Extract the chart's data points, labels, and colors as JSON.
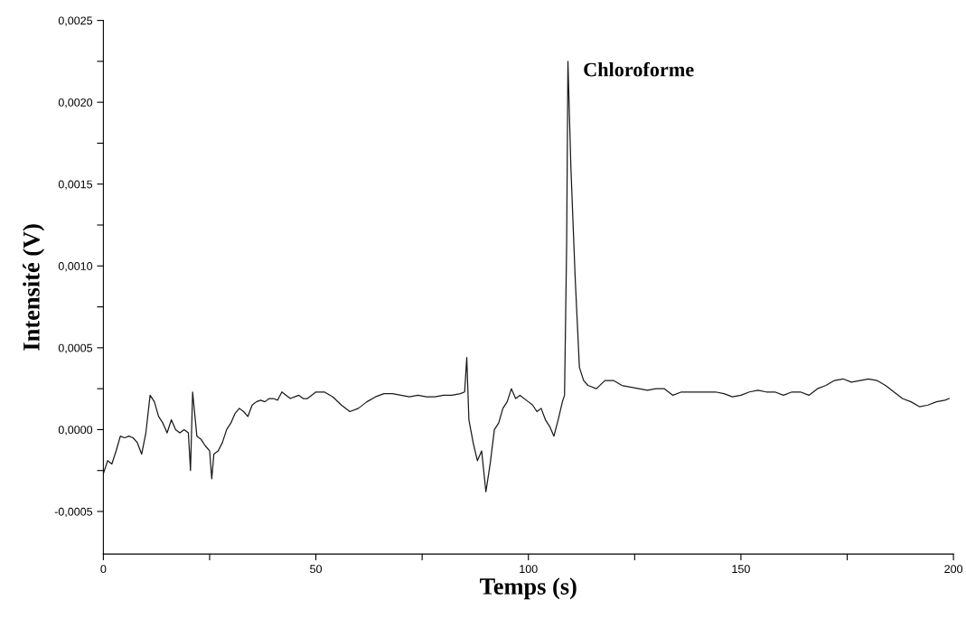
{
  "chart_data": {
    "type": "line",
    "xlabel": "Temps (s)",
    "ylabel": "Intensité (V)",
    "xlim": [
      0,
      200
    ],
    "ylim": [
      -0.00076,
      0.0025
    ],
    "xticks": [
      0,
      {
        "value": 25,
        "label": null
      },
      50,
      {
        "value": 75,
        "label": null
      },
      100,
      {
        "value": 125,
        "label": null
      },
      150,
      {
        "value": 175,
        "label": null
      },
      200
    ],
    "yticks": [
      {
        "value": -0.0005,
        "label": "-0,0005"
      },
      {
        "value": -0.00025,
        "label": null
      },
      {
        "value": 0,
        "label": "0,0000"
      },
      {
        "value": 0.00025,
        "label": null
      },
      {
        "value": 0.0005,
        "label": "0,0005"
      },
      {
        "value": 0.00075,
        "label": null
      },
      {
        "value": 0.001,
        "label": "0,0010"
      },
      {
        "value": 0.00125,
        "label": null
      },
      {
        "value": 0.0015,
        "label": "0,0015"
      },
      {
        "value": 0.00175,
        "label": null
      },
      {
        "value": 0.002,
        "label": "0,0020"
      },
      {
        "value": 0.00225,
        "label": null
      },
      {
        "value": 0.0025,
        "label": "0,0025"
      }
    ],
    "grid": false,
    "marker": "none",
    "line_style": "solid",
    "annotations": [
      "Chloroforme"
    ],
    "series": [
      {
        "color": "#1a1a1a",
        "x": [
          0,
          1,
          2,
          3,
          4,
          5,
          6,
          7,
          8,
          9,
          10,
          11,
          12,
          13,
          14,
          15,
          16,
          17,
          18,
          19,
          20,
          20.5,
          21,
          22,
          23,
          24,
          25,
          25.5,
          26,
          27,
          28,
          29,
          30,
          31,
          32,
          33,
          34,
          35,
          36,
          37,
          38,
          39,
          40,
          41,
          42,
          43,
          44,
          45,
          46,
          47,
          48,
          49,
          50,
          52,
          54,
          56,
          58,
          60,
          62,
          64,
          66,
          68,
          70,
          72,
          74,
          76,
          78,
          80,
          82,
          84,
          85,
          85.5,
          86,
          87,
          88,
          89,
          90,
          91,
          92,
          93,
          94,
          95,
          96,
          97,
          98,
          100,
          101,
          102,
          103,
          104,
          105,
          106,
          107,
          108,
          108.5,
          109,
          109.3,
          110,
          111,
          112,
          113,
          114,
          116,
          118,
          120,
          122,
          124,
          126,
          128,
          130,
          132,
          134,
          136,
          138,
          140,
          142,
          144,
          146,
          148,
          150,
          152,
          154,
          156,
          158,
          160,
          162,
          164,
          166,
          168,
          170,
          172,
          174,
          176,
          178,
          180,
          182,
          184,
          186,
          188,
          190,
          192,
          194,
          196,
          198,
          199
        ],
        "values": [
          -0.00027,
          -0.00019,
          -0.00021,
          -0.00013,
          -4e-05,
          -5e-05,
          -4e-05,
          -5e-05,
          -8e-05,
          -0.00015,
          -2e-05,
          0.00021,
          0.00017,
          8e-05,
          4e-05,
          -2e-05,
          6e-05,
          0.0,
          -2e-05,
          0.0,
          -2e-05,
          -0.00025,
          0.00023,
          -4e-05,
          -6e-05,
          -0.0001,
          -0.00013,
          -0.0003,
          -0.00015,
          -0.00013,
          -8e-05,
          0.0,
          4e-05,
          0.0001,
          0.00013,
          0.00011,
          8e-05,
          0.00015,
          0.00017,
          0.00018,
          0.00017,
          0.00019,
          0.00019,
          0.00018,
          0.00023,
          0.00021,
          0.00019,
          0.0002,
          0.00021,
          0.00019,
          0.00019,
          0.00021,
          0.00023,
          0.00023,
          0.0002,
          0.00015,
          0.00011,
          0.00013,
          0.00017,
          0.0002,
          0.00022,
          0.00022,
          0.00021,
          0.0002,
          0.00021,
          0.0002,
          0.0002,
          0.00021,
          0.00021,
          0.00022,
          0.00023,
          0.00044,
          6e-05,
          -8e-05,
          -0.00019,
          -0.00013,
          -0.00038,
          -0.00021,
          0.0,
          4e-05,
          0.00013,
          0.00017,
          0.00025,
          0.00019,
          0.00021,
          0.00017,
          0.00015,
          0.00011,
          0.00013,
          6e-05,
          2e-05,
          -4e-05,
          6e-05,
          0.00017,
          0.00021,
          0.00114,
          0.00225,
          0.0016,
          0.00093,
          0.00038,
          0.0003,
          0.00027,
          0.00025,
          0.0003,
          0.0003,
          0.00027,
          0.00026,
          0.00025,
          0.00024,
          0.00025,
          0.00025,
          0.00021,
          0.00023,
          0.00023,
          0.00023,
          0.00023,
          0.00023,
          0.00022,
          0.0002,
          0.00021,
          0.00023,
          0.00024,
          0.00023,
          0.00023,
          0.00021,
          0.00023,
          0.00023,
          0.00021,
          0.00025,
          0.00027,
          0.0003,
          0.00031,
          0.00029,
          0.0003,
          0.00031,
          0.0003,
          0.00027,
          0.00023,
          0.00019,
          0.00017,
          0.00014,
          0.00015,
          0.00017,
          0.00018,
          0.00019
        ]
      }
    ]
  }
}
